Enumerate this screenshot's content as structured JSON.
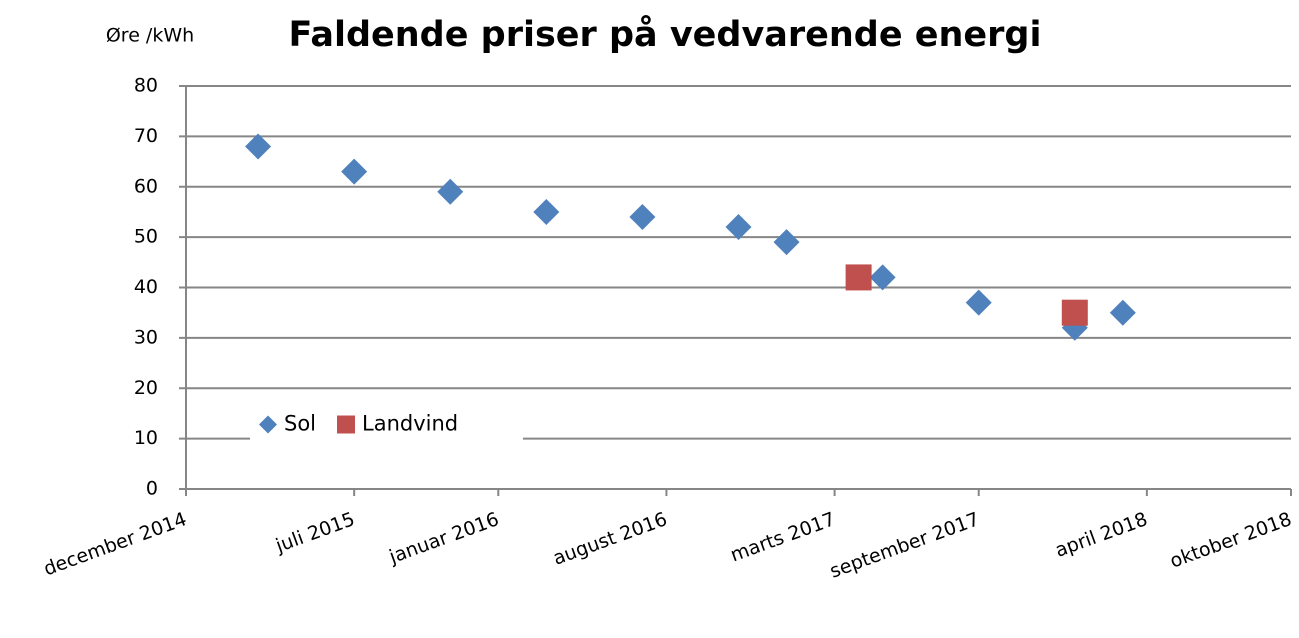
{
  "chart_data": {
    "type": "scatter",
    "title": "Faldende priser på vedvarende energi",
    "y_label": "Øre /kWh",
    "xlim": [
      "2014-12",
      "2018-10"
    ],
    "xticks": [
      {
        "value": "2014-12",
        "label": "december 2014"
      },
      {
        "value": "2015-07",
        "label": "juli 2015"
      },
      {
        "value": "2016-01",
        "label": "januar 2016"
      },
      {
        "value": "2016-08",
        "label": "august 2016"
      },
      {
        "value": "2017-03",
        "label": "marts 2017"
      },
      {
        "value": "2017-09",
        "label": "september 2017"
      },
      {
        "value": "2018-04",
        "label": "april 2018"
      },
      {
        "value": "2018-10",
        "label": "oktober 2018"
      }
    ],
    "ylim": [
      0,
      80
    ],
    "yticks": [
      0,
      10,
      20,
      30,
      40,
      50,
      60,
      70,
      80
    ],
    "grid": true,
    "legend": "bottom-left",
    "series": [
      {
        "name": "Sol",
        "color": "#4f81bd",
        "marker": "diamond",
        "x": [
          "2015-03",
          "2015-07",
          "2015-11",
          "2016-03",
          "2016-07",
          "2016-11",
          "2017-01",
          "2017-05",
          "2017-09",
          "2018-01",
          "2018-03"
        ],
        "values": [
          68,
          63,
          59,
          55,
          54,
          52,
          49,
          42,
          37,
          32,
          35
        ]
      },
      {
        "name": "Landvind",
        "color": "#c0504d",
        "marker": "square",
        "x": [
          "2017-04",
          "2018-01"
        ],
        "values": [
          42,
          35
        ]
      }
    ]
  }
}
